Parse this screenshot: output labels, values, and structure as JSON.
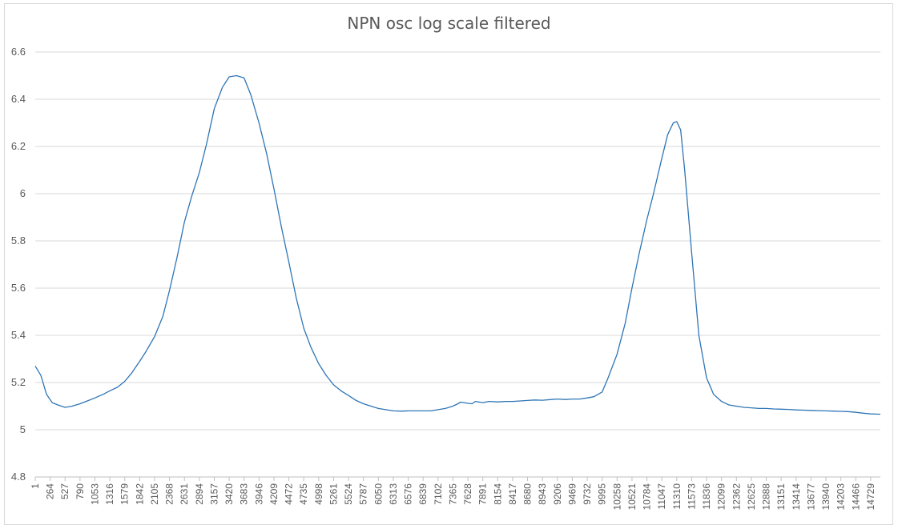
{
  "chart_data": {
    "type": "line",
    "title": "NPN osc log scale filtered",
    "xlabel": "",
    "ylabel": "",
    "ylim": [
      4.8,
      6.6
    ],
    "y_ticks": [
      "4.8",
      "5",
      "5.2",
      "5.4",
      "5.6",
      "5.8",
      "6",
      "6.2",
      "6.4",
      "6.6"
    ],
    "x_range": [
      1,
      14900
    ],
    "x_tick_labels": [
      "1",
      "264",
      "527",
      "790",
      "1053",
      "1316",
      "1579",
      "1842",
      "2105",
      "2368",
      "2631",
      "2894",
      "3157",
      "3420",
      "3683",
      "3946",
      "4209",
      "4472",
      "4735",
      "4998",
      "5261",
      "5524",
      "5787",
      "6050",
      "6313",
      "6576",
      "6839",
      "7102",
      "7365",
      "7628",
      "7891",
      "8154",
      "8417",
      "8680",
      "8943",
      "9206",
      "9469",
      "9732",
      "9995",
      "10258",
      "10521",
      "10784",
      "11047",
      "11310",
      "11573",
      "11836",
      "12099",
      "12362",
      "12625",
      "12888",
      "13151",
      "13414",
      "13677",
      "13940",
      "14203",
      "14466",
      "14729"
    ],
    "grid": "horizontal",
    "line_color": "#2e75b6",
    "series": [
      {
        "x": [
          1,
          100,
          200,
          300,
          400,
          527,
          650,
          790,
          950,
          1053,
          1200,
          1316,
          1450,
          1579,
          1700,
          1842,
          1950,
          2105,
          2250,
          2368,
          2500,
          2631,
          2760,
          2894,
          3020,
          3157,
          3300,
          3420,
          3550,
          3683,
          3800,
          3946,
          4080,
          4209,
          4340,
          4472,
          4600,
          4735,
          4860,
          4998,
          5130,
          5261,
          5390,
          5524,
          5650,
          5787,
          5920,
          6050,
          6180,
          6313,
          6450,
          6576,
          6700,
          6839,
          6970,
          7102,
          7230,
          7365,
          7450,
          7500,
          7560,
          7628,
          7700,
          7760,
          7891,
          8000,
          8154,
          8300,
          8417,
          8550,
          8680,
          8800,
          8943,
          9100,
          9206,
          9350,
          9469,
          9600,
          9732,
          9850,
          9995,
          10100,
          10258,
          10400,
          10521,
          10650,
          10784,
          10900,
          11047,
          11150,
          11250,
          11310,
          11380,
          11450,
          11573,
          11700,
          11836,
          11960,
          12099,
          12230,
          12362,
          12500,
          12625,
          12760,
          12888,
          13020,
          13151,
          13280,
          13414,
          13540,
          13677,
          13800,
          13940,
          14070,
          14203,
          14330,
          14466,
          14600,
          14729,
          14850,
          14900
        ],
        "values": [
          5.27,
          5.23,
          5.15,
          5.115,
          5.105,
          5.095,
          5.1,
          5.11,
          5.125,
          5.135,
          5.15,
          5.165,
          5.18,
          5.205,
          5.24,
          5.29,
          5.33,
          5.395,
          5.48,
          5.59,
          5.73,
          5.88,
          5.99,
          6.09,
          6.21,
          6.36,
          6.45,
          6.495,
          6.5,
          6.49,
          6.42,
          6.3,
          6.17,
          6.02,
          5.86,
          5.71,
          5.56,
          5.43,
          5.35,
          5.28,
          5.23,
          5.19,
          5.165,
          5.145,
          5.125,
          5.11,
          5.1,
          5.09,
          5.085,
          5.08,
          5.079,
          5.08,
          5.08,
          5.08,
          5.08,
          5.085,
          5.09,
          5.1,
          5.11,
          5.117,
          5.115,
          5.112,
          5.11,
          5.12,
          5.115,
          5.12,
          5.118,
          5.12,
          5.12,
          5.122,
          5.124,
          5.126,
          5.125,
          5.128,
          5.13,
          5.128,
          5.13,
          5.13,
          5.135,
          5.14,
          5.16,
          5.22,
          5.32,
          5.45,
          5.6,
          5.75,
          5.89,
          6.0,
          6.15,
          6.25,
          6.3,
          6.305,
          6.27,
          6.1,
          5.75,
          5.4,
          5.22,
          5.15,
          5.12,
          5.105,
          5.1,
          5.095,
          5.093,
          5.09,
          5.09,
          5.088,
          5.087,
          5.086,
          5.084,
          5.083,
          5.082,
          5.081,
          5.08,
          5.079,
          5.078,
          5.077,
          5.074,
          5.07,
          5.067,
          5.066,
          5.066
        ]
      }
    ]
  }
}
